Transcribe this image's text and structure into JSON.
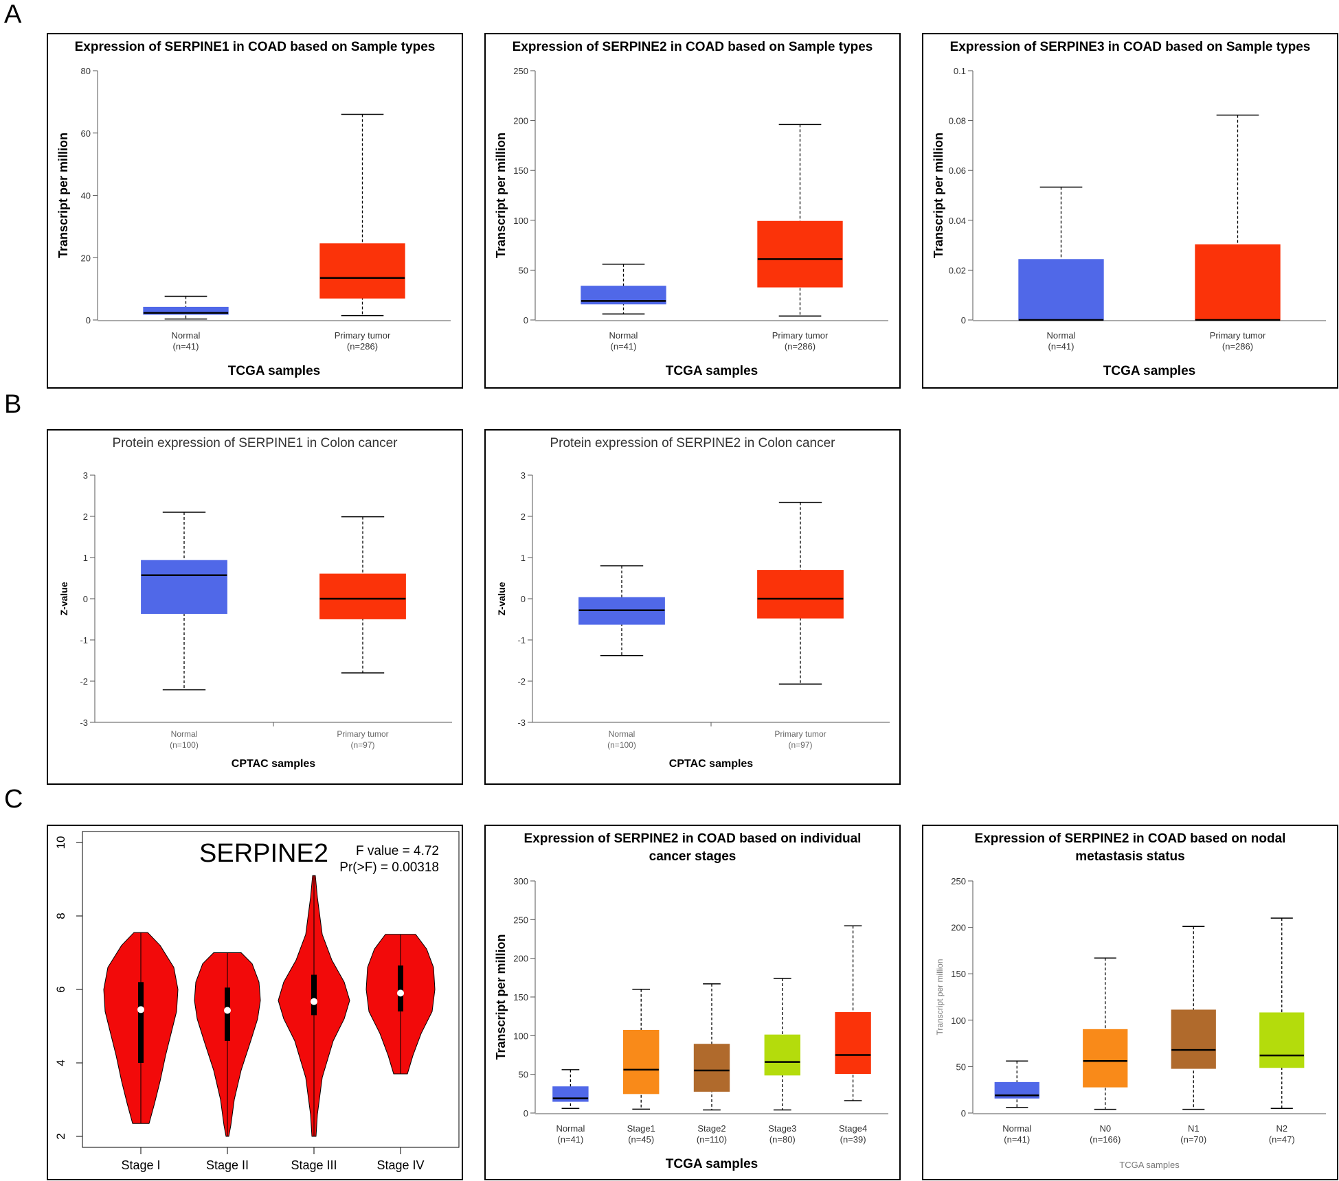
{
  "panel_labels": {
    "a": "A",
    "b": "B",
    "c": "C"
  },
  "colors": {
    "normal": "#5068e8",
    "tumor": "#fb3309",
    "stage1": "#f98a19",
    "stage2": "#b06a2c",
    "stage3": "#b4dc0c",
    "violin": "#f20a0a"
  },
  "chart_data": [
    {
      "id": "a1",
      "type": "box",
      "style": "tcga",
      "title": "Expression of SERPINE1 in COAD based on Sample types",
      "ylabel": "Transcript per million",
      "xlabel": "TCGA samples",
      "ylim": [
        0,
        80
      ],
      "yticks": [
        0,
        20,
        40,
        60,
        80
      ],
      "groups": [
        {
          "name": "Normal",
          "n": "(n=41)",
          "color": "#5068e8",
          "min": 0.3,
          "q1": 1.8,
          "median": 2.3,
          "q3": 4.1,
          "max": 7.6
        },
        {
          "name": "Primary tumor",
          "n": "(n=286)",
          "color": "#fb3309",
          "min": 1.4,
          "q1": 7.0,
          "median": 13.5,
          "q3": 24.5,
          "max": 66
        }
      ]
    },
    {
      "id": "a2",
      "type": "box",
      "style": "tcga",
      "title": "Expression of SERPINE2 in COAD based on Sample types",
      "ylabel": "Transcript per million",
      "xlabel": "TCGA samples",
      "ylim": [
        0,
        250
      ],
      "yticks": [
        0,
        50,
        100,
        150,
        200,
        250
      ],
      "groups": [
        {
          "name": "Normal",
          "n": "(n=41)",
          "color": "#5068e8",
          "min": 6,
          "q1": 16,
          "median": 19,
          "q3": 34,
          "max": 56
        },
        {
          "name": "Primary tumor",
          "n": "(n=286)",
          "color": "#fb3309",
          "min": 4,
          "q1": 33,
          "median": 61,
          "q3": 99,
          "max": 196
        }
      ]
    },
    {
      "id": "a3",
      "type": "box",
      "style": "tcga",
      "title": "Expression of SERPINE3 in COAD based on Sample types",
      "ylabel": "Transcript per million",
      "xlabel": "TCGA samples",
      "ylim": [
        0,
        0.1
      ],
      "yticks": [
        0,
        0.02,
        0.04,
        0.06,
        0.08,
        0.1
      ],
      "groups": [
        {
          "name": "Normal",
          "n": "(n=41)",
          "color": "#5068e8",
          "min": 0,
          "q1": 0,
          "median": 0,
          "q3": 0.0243,
          "max": 0.0533
        },
        {
          "name": "Primary tumor",
          "n": "(n=286)",
          "color": "#fb3309",
          "min": 0,
          "q1": 0,
          "median": 0,
          "q3": 0.0302,
          "max": 0.0822
        }
      ]
    },
    {
      "id": "b1",
      "type": "box",
      "style": "cptac",
      "title": "Protein expression of SERPINE1 in Colon cancer",
      "ylabel": "Z-value",
      "xlabel": "CPTAC samples",
      "ylim": [
        -3,
        3
      ],
      "yticks": [
        -3,
        -2,
        -1,
        0,
        1,
        2,
        3
      ],
      "groups": [
        {
          "name": "Normal",
          "n": "(n=100)",
          "color": "#5068e8",
          "min": -2.21,
          "q1": -0.36,
          "median": 0.57,
          "q3": 0.93,
          "max": 2.1
        },
        {
          "name": "Primary tumor",
          "n": "(n=97)",
          "color": "#fb3309",
          "min": -1.8,
          "q1": -0.49,
          "median": 0.0,
          "q3": 0.6,
          "max": 1.99
        }
      ]
    },
    {
      "id": "b2",
      "type": "box",
      "style": "cptac",
      "title": "Protein expression of SERPINE2 in Colon cancer",
      "ylabel": "Z-value",
      "xlabel": "CPTAC samples",
      "ylim": [
        -3,
        3
      ],
      "yticks": [
        -3,
        -2,
        -1,
        0,
        1,
        2,
        3
      ],
      "groups": [
        {
          "name": "Normal",
          "n": "(n=100)",
          "color": "#5068e8",
          "min": -1.38,
          "q1": -0.62,
          "median": -0.28,
          "q3": 0.03,
          "max": 0.8
        },
        {
          "name": "Primary tumor",
          "n": "(n=97)",
          "color": "#fb3309",
          "min": -2.07,
          "q1": -0.47,
          "median": 0.0,
          "q3": 0.69,
          "max": 2.34
        }
      ]
    },
    {
      "id": "c1",
      "type": "violin",
      "gene": "SERPINE2",
      "stat1": "F value = 4.72",
      "stat2": "Pr(>F) = 0.00318",
      "ylim": [
        2,
        10
      ],
      "yticks": [
        2,
        4,
        6,
        8,
        10
      ],
      "groups": [
        {
          "name": "Stage I",
          "min": 2.35,
          "q1": 4.0,
          "median": 5.45,
          "q3": 6.2,
          "max": 7.55
        },
        {
          "name": "Stage II",
          "min": 2.0,
          "q1": 4.6,
          "median": 5.43,
          "q3": 6.05,
          "max": 7.0
        },
        {
          "name": "Stage III",
          "min": 2.0,
          "q1": 5.3,
          "median": 5.67,
          "q3": 6.4,
          "max": 9.1
        },
        {
          "name": "Stage IV",
          "min": 3.7,
          "q1": 5.4,
          "median": 5.9,
          "q3": 6.65,
          "max": 7.5
        }
      ]
    },
    {
      "id": "c2",
      "type": "box",
      "style": "tcga",
      "title": "Expression of SERPINE2 in COAD based on individual cancer stages",
      "title_lines": [
        "Expression of SERPINE2 in COAD based on individual",
        "cancer stages"
      ],
      "ylabel": "Transcript per million",
      "xlabel": "TCGA samples",
      "ylim": [
        0,
        300
      ],
      "yticks": [
        0,
        50,
        100,
        150,
        200,
        250,
        300
      ],
      "groups": [
        {
          "name": "Normal",
          "n": "(n=41)",
          "color": "#5068e8",
          "min": 6,
          "q1": 15,
          "median": 19,
          "q3": 34,
          "max": 56
        },
        {
          "name": "Stage1",
          "n": "(n=45)",
          "color": "#f98a19",
          "min": 5,
          "q1": 25,
          "median": 56,
          "q3": 107,
          "max": 160
        },
        {
          "name": "Stage2",
          "n": "(n=110)",
          "color": "#b06a2c",
          "min": 4,
          "q1": 28,
          "median": 55,
          "q3": 89,
          "max": 167
        },
        {
          "name": "Stage3",
          "n": "(n=80)",
          "color": "#b4dc0c",
          "min": 4,
          "q1": 49,
          "median": 66,
          "q3": 101,
          "max": 174
        },
        {
          "name": "Stage4",
          "n": "(n=39)",
          "color": "#fb3309",
          "min": 16,
          "q1": 51,
          "median": 75,
          "q3": 130,
          "max": 242
        }
      ]
    },
    {
      "id": "c3",
      "type": "box",
      "style": "tcga-light",
      "title": "Expression of SERPINE2 in COAD based on nodal metastasis status",
      "title_lines": [
        "Expression of SERPINE2 in COAD based on nodal",
        "metastasis status"
      ],
      "ylabel": "Transcript per million",
      "xlabel": "TCGA samples",
      "ylim": [
        0,
        250
      ],
      "yticks": [
        0,
        50,
        100,
        150,
        200,
        250
      ],
      "groups": [
        {
          "name": "Normal",
          "n": "(n=41)",
          "color": "#5068e8",
          "min": 6,
          "q1": 16,
          "median": 19,
          "q3": 33,
          "max": 56
        },
        {
          "name": "N0",
          "n": "(n=166)",
          "color": "#f98a19",
          "min": 4,
          "q1": 28,
          "median": 56,
          "q3": 90,
          "max": 167
        },
        {
          "name": "N1",
          "n": "(n=70)",
          "color": "#b06a2c",
          "min": 4,
          "q1": 48,
          "median": 68,
          "q3": 111,
          "max": 201
        },
        {
          "name": "N2",
          "n": "(n=47)",
          "color": "#b4dc0c",
          "min": 5,
          "q1": 49,
          "median": 62,
          "q3": 108,
          "max": 210
        }
      ]
    }
  ]
}
